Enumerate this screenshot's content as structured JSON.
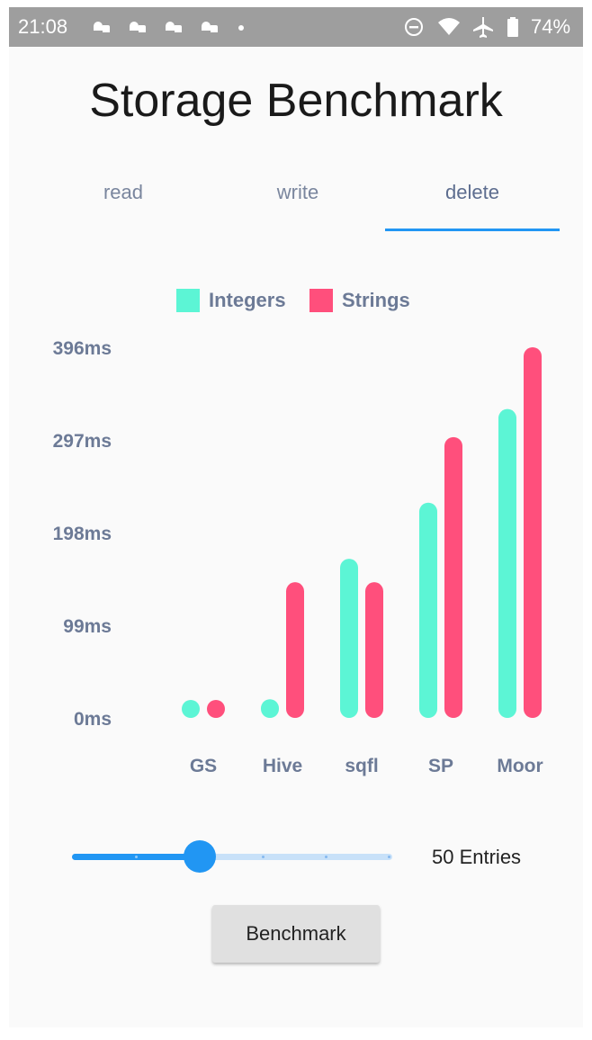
{
  "status_bar": {
    "time": "21:08",
    "battery": "74%",
    "icons": [
      "notification-icon",
      "notification-icon",
      "notification-icon",
      "notification-icon",
      "dot-icon",
      "do-not-disturb-icon",
      "wifi-icon",
      "airplane-icon",
      "battery-icon"
    ]
  },
  "app": {
    "title": "Storage Benchmark",
    "tabs": [
      {
        "label": "read",
        "active": false
      },
      {
        "label": "write",
        "active": false
      },
      {
        "label": "delete",
        "active": true
      }
    ],
    "accent_color": "#2196f3"
  },
  "chart_data": {
    "type": "bar",
    "categories": [
      "GS",
      "Hive",
      "sqfl",
      "SP",
      "Moor"
    ],
    "series": [
      {
        "name": "Integers",
        "color": "#5cf5d5",
        "values": [
          10,
          20,
          170,
          230,
          330
        ]
      },
      {
        "name": "Strings",
        "color": "#ff4f7c",
        "values": [
          10,
          145,
          145,
          300,
          396
        ]
      }
    ],
    "yticks": [
      "0ms",
      "99ms",
      "198ms",
      "297ms",
      "396ms"
    ],
    "ylim": [
      0,
      396
    ],
    "legend_position": "top-center",
    "grid": false
  },
  "slider": {
    "value": 50,
    "fraction": 0.4,
    "label": "50 Entries"
  },
  "benchmark_button": {
    "label": "Benchmark"
  }
}
